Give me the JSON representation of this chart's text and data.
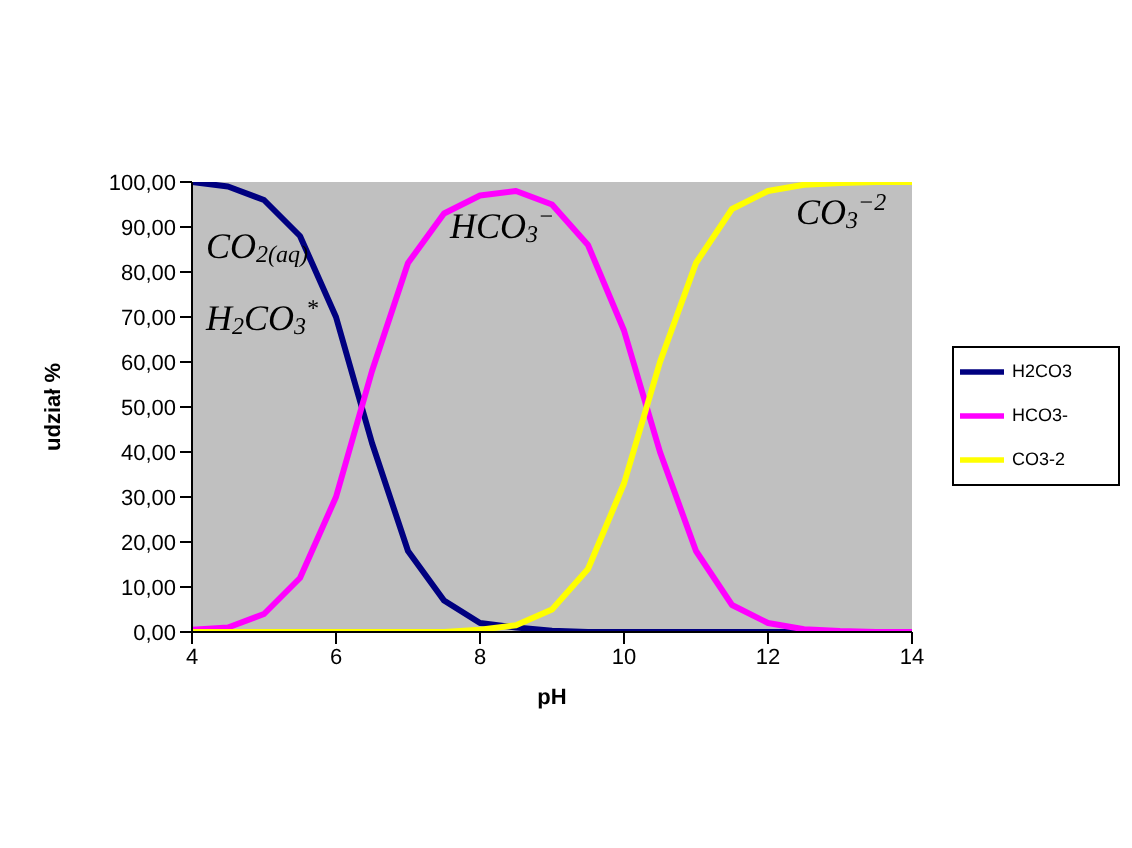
{
  "chart_data": {
    "type": "line",
    "xlabel": "pH",
    "ylabel": "udział %",
    "x": [
      4,
      4.5,
      5,
      5.5,
      6,
      6.5,
      7,
      7.5,
      8,
      8.5,
      9,
      9.5,
      10,
      10.5,
      11,
      11.5,
      12,
      12.5,
      13,
      13.5,
      14
    ],
    "series": [
      {
        "name": "H2CO3",
        "color": "#000080",
        "values": [
          100,
          99,
          96,
          88,
          70,
          42,
          18,
          7,
          2,
          1,
          0.3,
          0,
          0,
          0,
          0,
          0,
          0,
          0,
          0,
          null,
          null
        ]
      },
      {
        "name": "HCO3-",
        "color": "#ff00ff",
        "values": [
          0.5,
          1,
          4,
          12,
          30,
          58,
          82,
          93,
          97,
          98,
          95,
          86,
          67,
          40,
          18,
          6,
          2,
          0.6,
          0.2,
          0,
          0
        ]
      },
      {
        "name": "CO3-2",
        "color": "#ffff00",
        "values": [
          0,
          0,
          0,
          0,
          0,
          0,
          0,
          0,
          0.5,
          1.5,
          5,
          14,
          33,
          60,
          82,
          94,
          98,
          99.4,
          99.8,
          100,
          100
        ]
      }
    ],
    "xlim": [
      4,
      14
    ],
    "xticks": [
      4,
      6,
      8,
      10,
      12,
      14
    ],
    "ylim": [
      0,
      100
    ],
    "yticks": [
      {
        "value": 0,
        "label": "0,00"
      },
      {
        "value": 10,
        "label": "10,00"
      },
      {
        "value": 20,
        "label": "20,00"
      },
      {
        "value": 30,
        "label": "30,00"
      },
      {
        "value": 40,
        "label": "40,00"
      },
      {
        "value": 50,
        "label": "50,00"
      },
      {
        "value": 60,
        "label": "60,00"
      },
      {
        "value": 70,
        "label": "70,00"
      },
      {
        "value": 80,
        "label": "80,00"
      },
      {
        "value": 90,
        "label": "90,00"
      },
      {
        "value": 100,
        "label": "100,00"
      }
    ],
    "annotations": [
      "CO$_{2(aq)}$",
      "H$_{2}$CO$_{3}$$^{*}$",
      "HCO$_{3}$$^{−}$",
      "CO$_{3}$$^{−2}$"
    ],
    "grid": false,
    "legend": "right",
    "marker": "none",
    "line_style": "solid"
  }
}
